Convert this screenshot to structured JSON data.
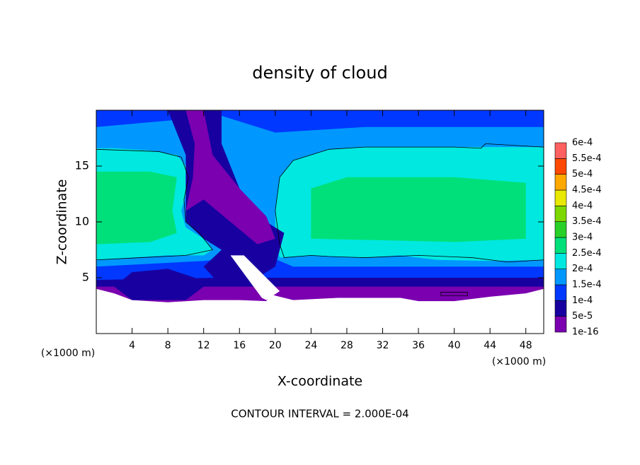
{
  "chart_data": {
    "type": "contour",
    "title": "density of cloud",
    "x_label": "X-coordinate",
    "y_label": "Z-coordinate",
    "x_unit": "(×1000 m)",
    "y_unit": "(×1000 m)",
    "footnote": "CONTOUR INTERVAL = 2.000E-04",
    "xlim": [
      0,
      50
    ],
    "ylim": [
      0,
      20
    ],
    "xticks": [
      4,
      8,
      12,
      16,
      20,
      24,
      28,
      32,
      36,
      40,
      44,
      48
    ],
    "yticks": [
      5,
      10,
      15
    ],
    "colorbar": {
      "levels": [
        {
          "value": 1e-16,
          "label": "1e-16"
        },
        {
          "value": 5e-05,
          "label": "5e-5"
        },
        {
          "value": 0.0001,
          "label": "1e-4"
        },
        {
          "value": 0.00015,
          "label": "1.5e-4"
        },
        {
          "value": 0.0002,
          "label": "2e-4"
        },
        {
          "value": 0.00025,
          "label": "2.5e-4"
        },
        {
          "value": 0.0003,
          "label": "3e-4"
        },
        {
          "value": 0.00035,
          "label": "3.5e-4"
        },
        {
          "value": 0.0004,
          "label": "4e-4"
        },
        {
          "value": 0.00045,
          "label": "4.5e-4"
        },
        {
          "value": 0.0005,
          "label": "5e-4"
        },
        {
          "value": 0.00055,
          "label": "5.5e-4"
        },
        {
          "value": 0.0006,
          "label": "6e-4"
        }
      ],
      "colors": [
        "#7a00b0",
        "#1800a0",
        "#0038ff",
        "#0098ff",
        "#00e8e0",
        "#00e07a",
        "#28d028",
        "#7cd800",
        "#e8e800",
        "#ffa800",
        "#ff4800",
        "#ff6060"
      ]
    },
    "regions": [
      {
        "value": 1e-05,
        "points": [
          [
            0,
            4.4
          ],
          [
            0,
            4
          ],
          [
            2,
            3.6
          ],
          [
            4,
            3
          ],
          [
            8,
            2.8
          ],
          [
            12,
            3
          ],
          [
            16,
            3
          ],
          [
            19,
            2.9
          ],
          [
            19.5,
            3.5
          ],
          [
            22,
            3
          ],
          [
            27,
            3.2
          ],
          [
            34,
            3.2
          ],
          [
            36,
            2.9
          ],
          [
            40,
            2.9
          ],
          [
            44,
            3.3
          ],
          [
            48,
            3.6
          ],
          [
            50,
            4
          ],
          [
            50,
            4.5
          ]
        ]
      },
      {
        "value": 7e-05,
        "points": [
          [
            0,
            4.2
          ],
          [
            50,
            4.2
          ],
          [
            50,
            20
          ],
          [
            0,
            20
          ]
        ]
      },
      {
        "value": 0.00012,
        "points": [
          [
            0,
            4.8
          ],
          [
            14,
            5
          ],
          [
            24,
            5
          ],
          [
            50,
            5
          ],
          [
            50,
            20
          ],
          [
            0,
            20
          ]
        ]
      },
      {
        "value": 0.00017,
        "points": [
          [
            0,
            6
          ],
          [
            12,
            6.5
          ],
          [
            19,
            7
          ],
          [
            22,
            6
          ],
          [
            50,
            6
          ],
          [
            50,
            18.5
          ],
          [
            30,
            18.5
          ],
          [
            20,
            18
          ],
          [
            14,
            19.5
          ],
          [
            0,
            18.5
          ]
        ]
      },
      {
        "value": 0.00022,
        "points": [
          [
            0,
            6.6
          ],
          [
            4,
            6.8
          ],
          [
            8,
            7
          ],
          [
            12,
            7
          ],
          [
            13,
            7.5
          ],
          [
            12,
            8.5
          ],
          [
            10,
            9.5
          ],
          [
            9.5,
            11
          ],
          [
            10.2,
            13
          ],
          [
            10,
            15
          ],
          [
            9,
            16
          ],
          [
            6,
            16.4
          ],
          [
            2,
            16.6
          ],
          [
            0,
            16.6
          ]
        ]
      },
      {
        "value": 0.00022,
        "points": [
          [
            20.5,
            6.8
          ],
          [
            24,
            7
          ],
          [
            30,
            6.8
          ],
          [
            34,
            7
          ],
          [
            38,
            6.6
          ],
          [
            44,
            6.5
          ],
          [
            50,
            6.6
          ],
          [
            50,
            16.7
          ],
          [
            40,
            16.7
          ],
          [
            30,
            16.7
          ],
          [
            26,
            16.5
          ],
          [
            22,
            15.5
          ],
          [
            20.5,
            14
          ],
          [
            20,
            11
          ],
          [
            20,
            8
          ]
        ]
      },
      {
        "value": 0.00027,
        "points": [
          [
            0,
            8
          ],
          [
            6,
            8.2
          ],
          [
            9,
            9
          ],
          [
            8.5,
            11
          ],
          [
            9,
            14
          ],
          [
            6,
            14.5
          ],
          [
            0,
            14.5
          ]
        ]
      },
      {
        "value": 0.00027,
        "points": [
          [
            24,
            8.5
          ],
          [
            40,
            8.2
          ],
          [
            48,
            8.5
          ],
          [
            48,
            13.5
          ],
          [
            40,
            14
          ],
          [
            28,
            14
          ],
          [
            24,
            13
          ]
        ]
      },
      {
        "value": 7e-05,
        "points": [
          [
            8,
            20
          ],
          [
            14,
            20
          ],
          [
            14,
            17
          ],
          [
            16,
            13
          ],
          [
            19,
            10
          ],
          [
            21,
            9
          ],
          [
            20,
            6
          ],
          [
            18,
            5
          ],
          [
            14,
            4.2
          ],
          [
            12,
            6
          ],
          [
            14,
            7.5
          ],
          [
            12,
            8.5
          ],
          [
            10,
            10
          ],
          [
            10,
            13
          ],
          [
            10,
            16
          ]
        ]
      },
      {
        "value": 7e-05,
        "points": [
          [
            2,
            4.2
          ],
          [
            4,
            5.5
          ],
          [
            8,
            5.8
          ],
          [
            11,
            5
          ],
          [
            12,
            4.2
          ],
          [
            10,
            3
          ],
          [
            4,
            3
          ]
        ]
      },
      {
        "value": 1e-05,
        "points": [
          [
            10,
            20
          ],
          [
            12,
            20
          ],
          [
            13,
            16
          ],
          [
            16,
            13
          ],
          [
            19,
            10.5
          ],
          [
            20,
            8.5
          ],
          [
            18,
            8
          ],
          [
            15,
            10
          ],
          [
            12,
            12
          ],
          [
            10,
            11
          ],
          [
            10.8,
            14
          ],
          [
            11,
            17
          ]
        ]
      },
      {
        "value": 0,
        "points": [
          [
            15,
            7
          ],
          [
            16.5,
            7
          ],
          [
            20.5,
            3.8
          ],
          [
            19,
            3
          ],
          [
            18.5,
            3.2
          ]
        ]
      }
    ],
    "contours": [
      {
        "value": 0.0002,
        "points": [
          [
            0,
            6.6
          ],
          [
            5,
            6.8
          ],
          [
            10,
            7
          ],
          [
            13,
            7.5
          ],
          [
            11.5,
            9
          ],
          [
            10,
            10
          ],
          [
            9.8,
            12
          ],
          [
            10.3,
            14
          ],
          [
            9.5,
            15.8
          ],
          [
            7,
            16.3
          ],
          [
            0,
            16.5
          ]
        ]
      },
      {
        "value": 0.0002,
        "points": [
          [
            50,
            6.6
          ],
          [
            46,
            6.4
          ],
          [
            42,
            6.8
          ],
          [
            36,
            7
          ],
          [
            30,
            6.8
          ],
          [
            26,
            6.9
          ],
          [
            24,
            7
          ],
          [
            21,
            6.8
          ],
          [
            20.5,
            8
          ],
          [
            20,
            11
          ],
          [
            20.5,
            14
          ],
          [
            22,
            15.5
          ],
          [
            26,
            16.5
          ],
          [
            30,
            16.7
          ],
          [
            40,
            16.7
          ],
          [
            43,
            16.6
          ],
          [
            43.5,
            17
          ],
          [
            50,
            16.7
          ]
        ]
      },
      {
        "value": 0.0002,
        "points": [
          [
            38.5,
            3.4
          ],
          [
            41.5,
            3.4
          ],
          [
            41.5,
            3.7
          ],
          [
            38.5,
            3.7
          ],
          [
            38.5,
            3.4
          ]
        ]
      }
    ]
  }
}
